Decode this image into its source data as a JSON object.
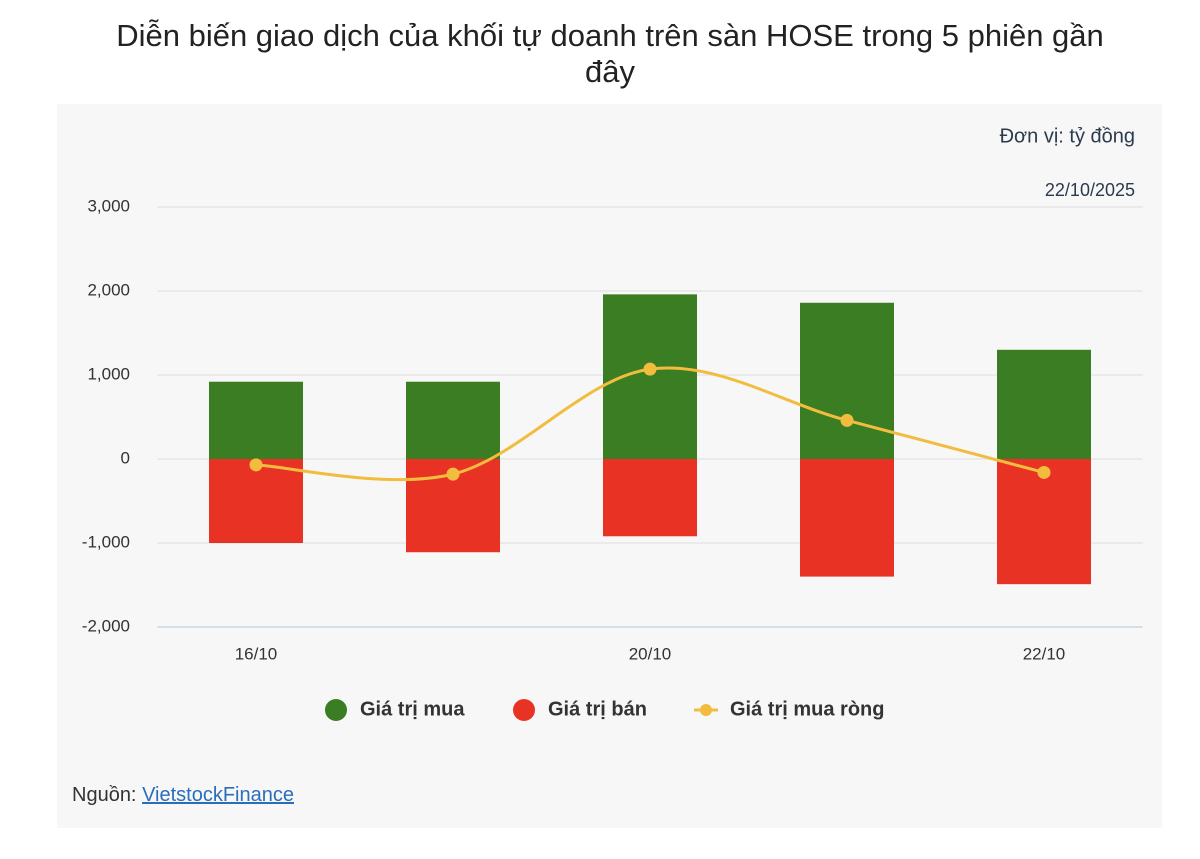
{
  "chart_data": {
    "type": "bar",
    "title": "Diễn biến giao dịch của khối tự doanh trên sàn HOSE trong 5 phiên gần đây",
    "unit_note": "Đơn vị: tỷ đồng",
    "date_note": "22/10/2025",
    "source_label": "Nguồn:",
    "source_name": "VietstockFinance",
    "categories": [
      "16/10",
      null,
      "20/10",
      null,
      "22/10"
    ],
    "series": [
      {
        "name": "Giá trị mua",
        "type": "bar",
        "color": "#3a7d22",
        "values": [
          920,
          920,
          1960,
          1860,
          1300
        ]
      },
      {
        "name": "Giá trị bán",
        "type": "bar",
        "color": "#e83324",
        "values": [
          -1000,
          -1110,
          -920,
          -1400,
          -1490
        ]
      },
      {
        "name": "Giá trị mua ròng",
        "type": "line",
        "color": "#f2bd3f",
        "values": [
          -70,
          -180,
          1070,
          460,
          -160
        ]
      }
    ],
    "ylim": [
      -2000,
      3000
    ],
    "yticks": [
      {
        "value": -2000,
        "label": "-2,000"
      },
      {
        "value": -1000,
        "label": "-1,000"
      },
      0,
      {
        "value": 1000,
        "label": "1,000"
      },
      {
        "value": 2000,
        "label": "2,000"
      },
      {
        "value": 3000,
        "label": "3,000"
      }
    ],
    "grid": true
  }
}
